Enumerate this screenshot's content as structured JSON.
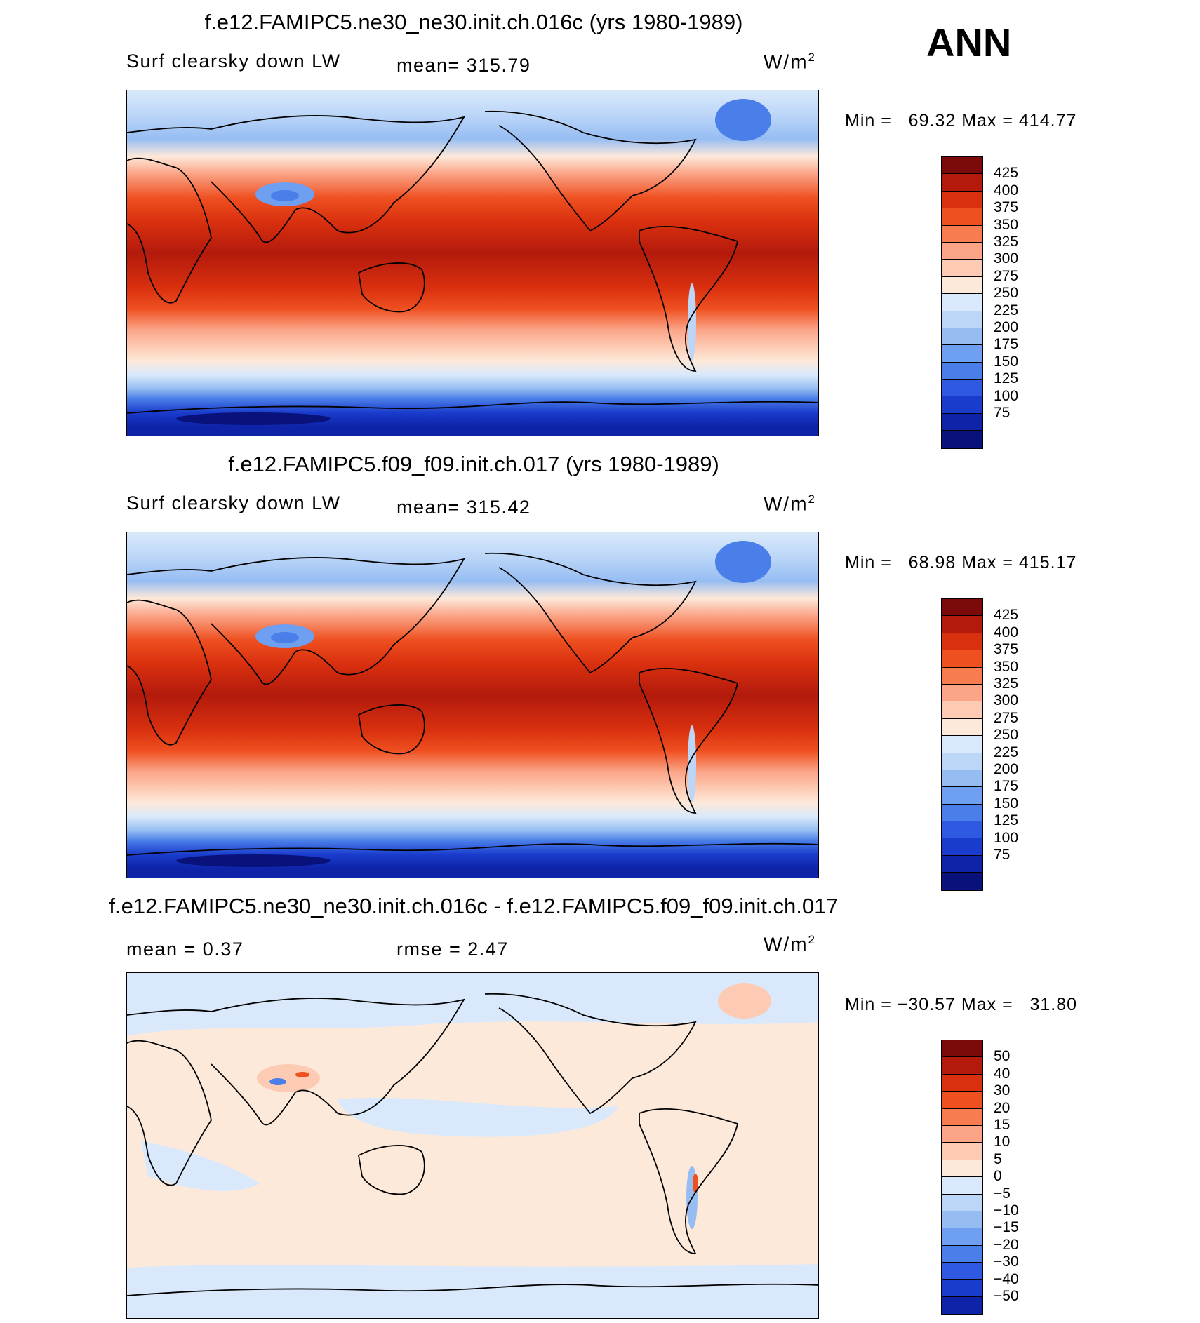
{
  "header": {
    "season": "ANN"
  },
  "panels": [
    {
      "id": "top",
      "title": "f.e12.FAMIPC5.ne30_ne30.init.ch.016c (yrs 1980-1989)",
      "variable": "Surf clearsky down LW",
      "stat": "mean= 315.79",
      "units": "W/m",
      "units_exp": "2",
      "min_text": "Min =   69.32",
      "max_text": "Max = 414.77"
    },
    {
      "id": "middle",
      "title": "f.e12.FAMIPC5.f09_f09.init.ch.017 (yrs 1980-1989)",
      "variable": "Surf clearsky down LW",
      "stat": "mean= 315.42",
      "units": "W/m",
      "units_exp": "2",
      "min_text": "Min =   68.98",
      "max_text": "Max = 415.17"
    },
    {
      "id": "bottom",
      "title": "f.e12.FAMIPC5.ne30_ne30.init.ch.016c - f.e12.FAMIPC5.f09_f09.init.ch.017",
      "mean_text": "mean =    0.37",
      "rmse_text": "rmse =    2.47",
      "units": "W/m",
      "units_exp": "2",
      "min_text": "Min = −30.57",
      "max_text": "Max =   31.80"
    }
  ],
  "colorbars": {
    "abs": {
      "colors": [
        "#7d0a0a",
        "#b31a0c",
        "#d9300f",
        "#ef5020",
        "#f77d50",
        "#fba487",
        "#fdcbb3",
        "#fde9da",
        "#d9e9fb",
        "#bcd6f8",
        "#96bdf2",
        "#6e9ff0",
        "#4a7ee8",
        "#2e59e0",
        "#1a3ccc",
        "#0e23a8",
        "#08127a"
      ],
      "labels": [
        "425",
        "400",
        "375",
        "350",
        "325",
        "300",
        "275",
        "250",
        "225",
        "200",
        "175",
        "150",
        "125",
        "100",
        "75"
      ]
    },
    "diff": {
      "colors": [
        "#7d0a0a",
        "#b31a0c",
        "#d9300f",
        "#ef5020",
        "#f77d50",
        "#fba487",
        "#fdcbb3",
        "#fde9da",
        "#d9e9fb",
        "#bcd6f8",
        "#96bdf2",
        "#6e9ff0",
        "#4a7ee8",
        "#2e59e0",
        "#1a3ccc",
        "#0e23a8"
      ],
      "labels": [
        "50",
        "40",
        "30",
        "20",
        "15",
        "10",
        "5",
        "0",
        "−5",
        "−10",
        "−15",
        "−20",
        "−30",
        "−40",
        "−50"
      ]
    }
  }
}
